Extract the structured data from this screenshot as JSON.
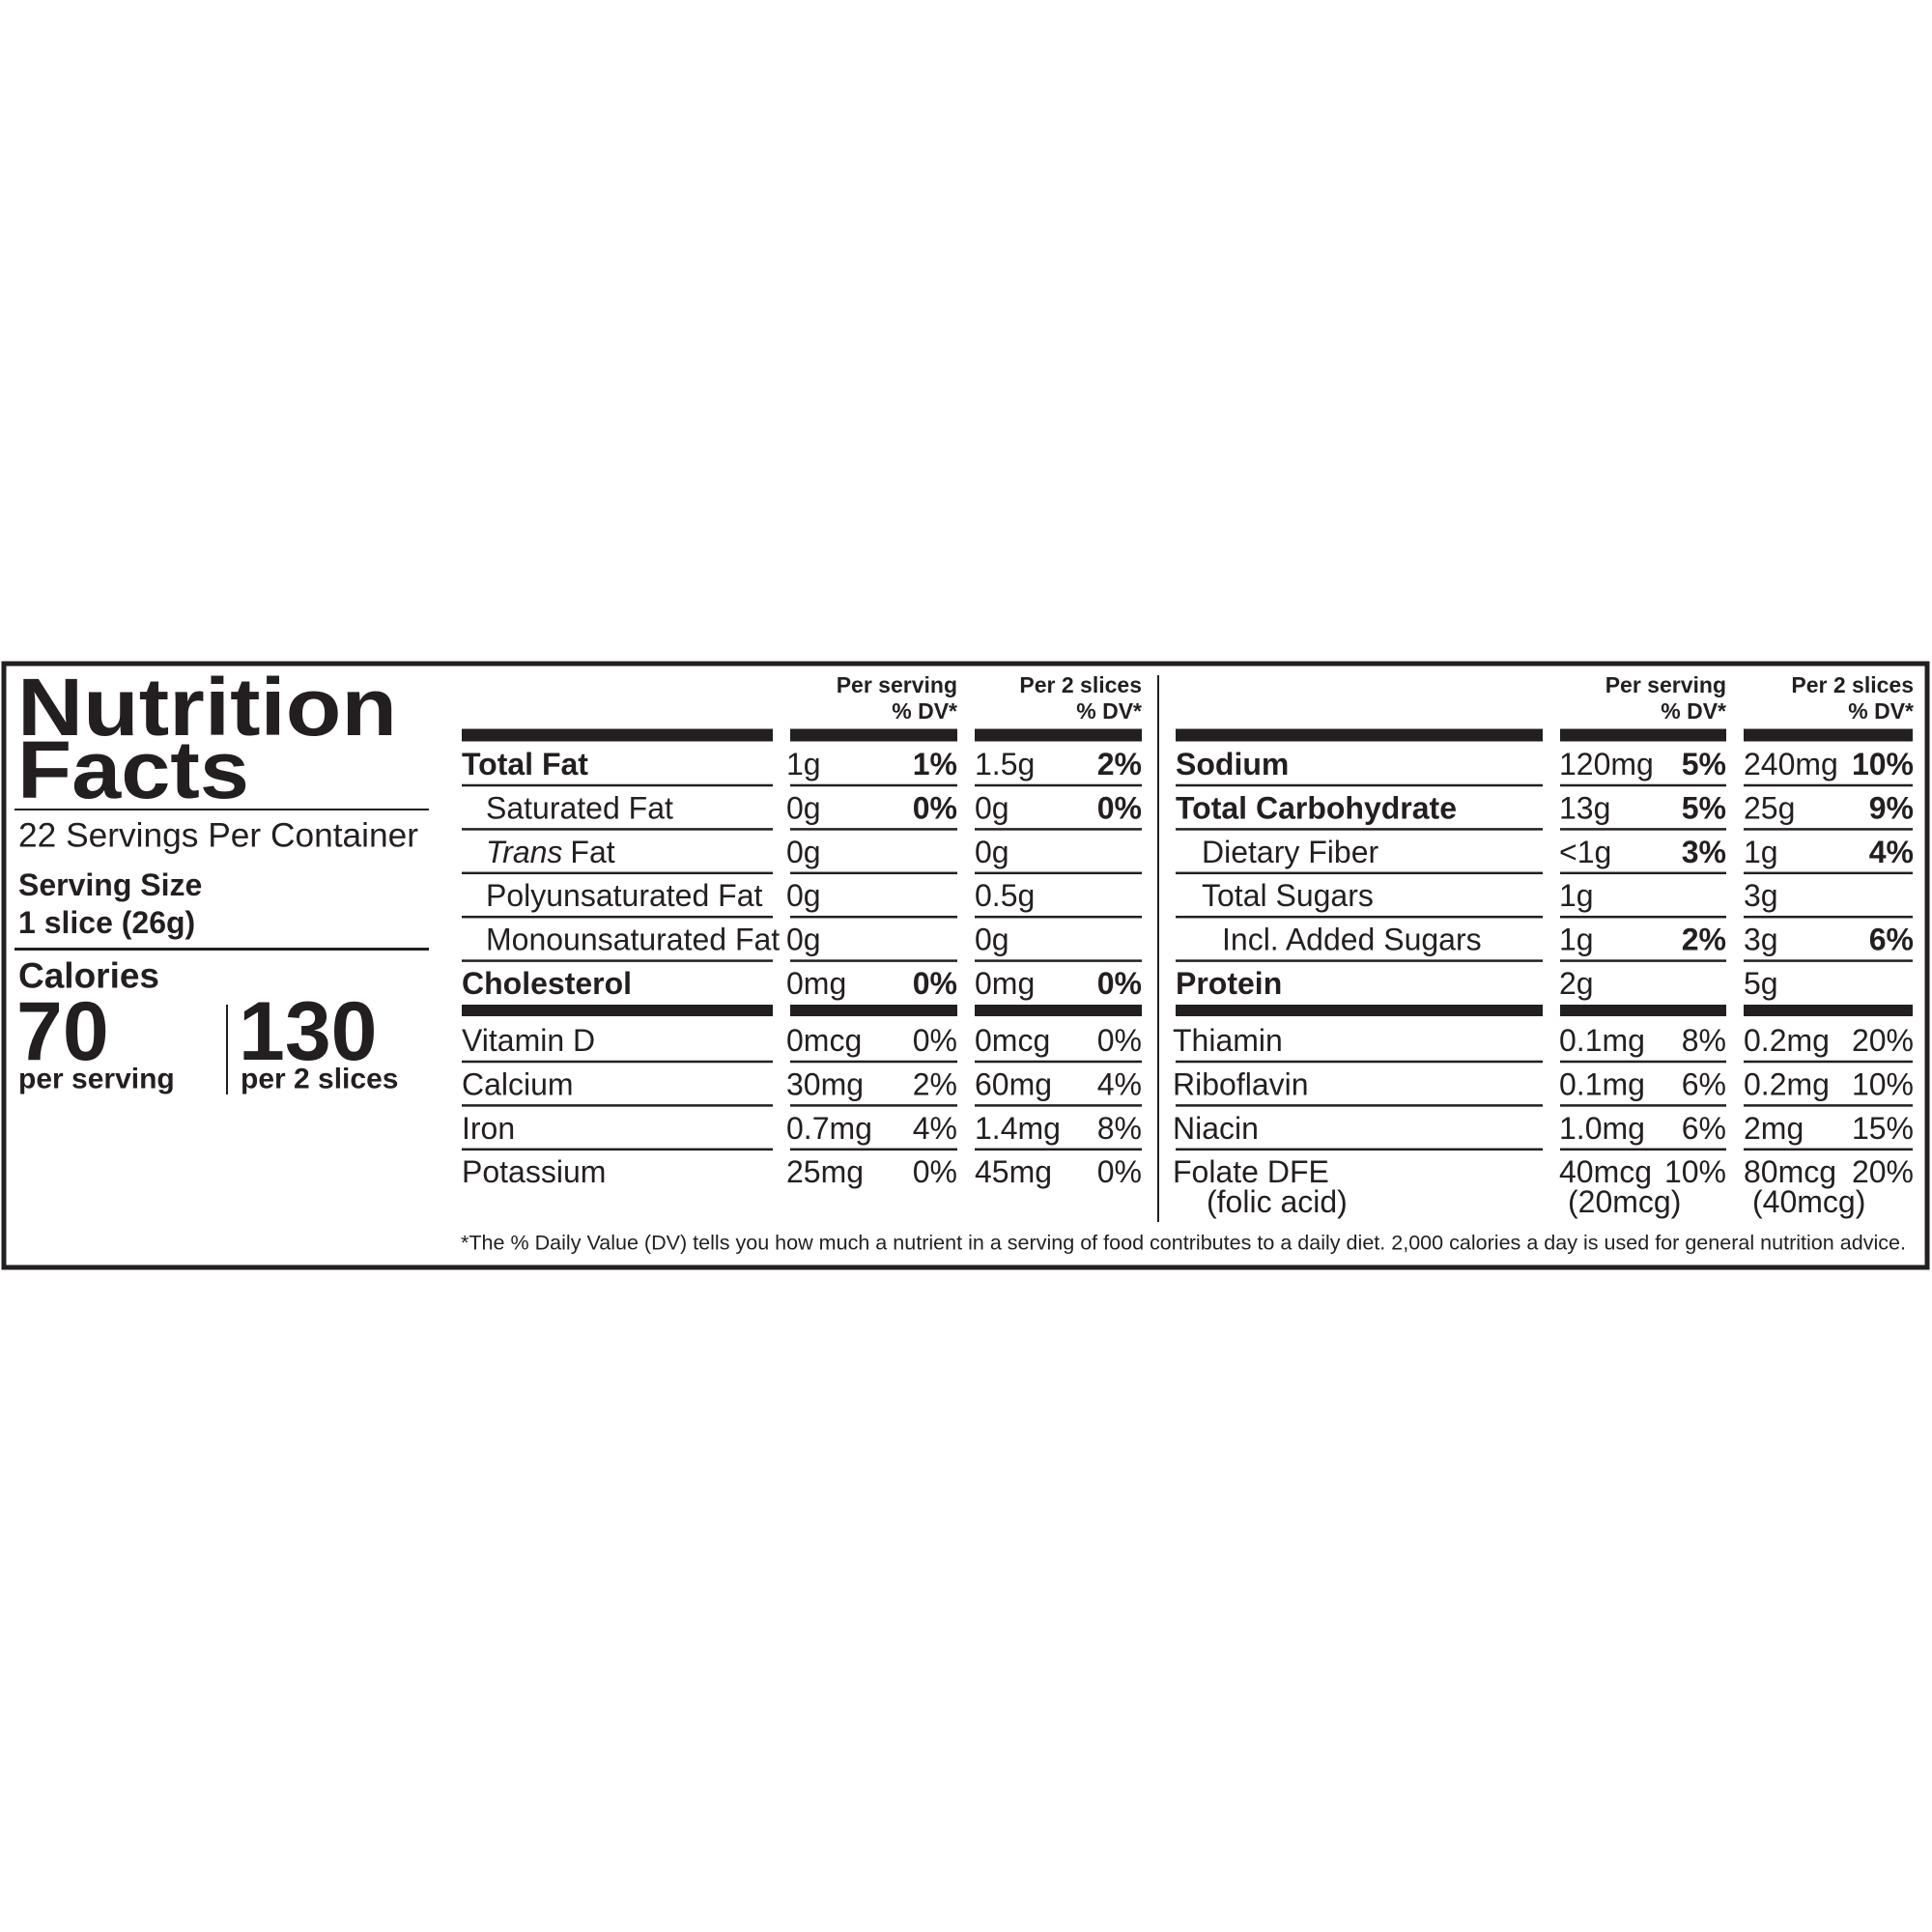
{
  "header": {
    "title": [
      "Nutrition",
      "Facts"
    ],
    "servings": "22 Servings Per Container",
    "serving_size_label": "Serving Size",
    "serving_size": "1 slice (26g)",
    "calories_label": "Calories",
    "calories": [
      {
        "amount": "70",
        "label": "per serving"
      },
      {
        "amount": "130",
        "label": "per 2 slices"
      }
    ]
  },
  "left_table": {
    "headers": [
      [
        "Per serving",
        "% DV*"
      ],
      [
        "Per 2 slices",
        "% DV*"
      ]
    ],
    "rows": [
      [
        "Total Fat",
        "1g",
        "1%",
        "1.5g",
        "2%"
      ],
      [
        "Saturated Fat",
        "0g",
        "0%",
        "0g",
        "0%"
      ],
      [
        [
          "Trans",
          "Fat"
        ],
        "0g",
        null,
        "0g",
        null
      ],
      [
        "Polyunsaturated Fat",
        "0g",
        null,
        "0.5g",
        null
      ],
      [
        "Monounsaturated Fat",
        "0g",
        null,
        "0g",
        null
      ],
      [
        "Cholesterol",
        "0mg",
        "0%",
        "0mg",
        "0%"
      ]
    ],
    "vitamin_rows": [
      [
        "Vitamin D",
        "0mcg",
        "0%",
        "0mcg",
        "0%"
      ],
      [
        "Calcium",
        "30mg",
        "2%",
        "60mg",
        "4%"
      ],
      [
        "Iron",
        "0.7mg",
        "4%",
        "1.4mg",
        "8%"
      ],
      [
        "Potassium",
        "25mg",
        "0%",
        "45mg",
        "0%"
      ]
    ]
  },
  "right_table": {
    "headers": [
      [
        "Per serving",
        "% DV*"
      ],
      [
        "Per 2 slices",
        "% DV*"
      ]
    ],
    "rows": [
      [
        "Sodium",
        "120mg",
        "5%",
        "240mg",
        "10%"
      ],
      [
        "Total Carbohydrate",
        "13g",
        "5%",
        "25g",
        "9%"
      ],
      [
        "Dietary Fiber",
        "<1g",
        "3%",
        "1g",
        "4%"
      ],
      [
        "Total Sugars",
        "1g",
        null,
        "3g",
        null
      ],
      [
        "Incl. Added Sugars",
        "1g",
        "2%",
        "3g",
        "6%"
      ],
      [
        "Protein",
        "2g",
        null,
        "5g",
        null
      ]
    ],
    "vitamin_rows": [
      [
        "Thiamin",
        "0.1mg",
        "8%",
        "0.2mg",
        "20%"
      ],
      [
        "Riboflavin",
        "0.1mg",
        "6%",
        "0.2mg",
        "10%"
      ],
      [
        "Niacin",
        "1.0mg",
        "6%",
        "2mg",
        "15%"
      ],
      [
        [
          "Folate DFE",
          "(folic acid)"
        ],
        [
          "40mcg",
          "(20mcg)"
        ],
        "10%",
        [
          "80mcg",
          "(40mcg)"
        ],
        "20%"
      ]
    ]
  },
  "footnote": "*The % Daily Value (DV) tells you how much a nutrient in a serving of food contributes to a daily diet. 2,000 calories a day is used for general nutrition advice."
}
